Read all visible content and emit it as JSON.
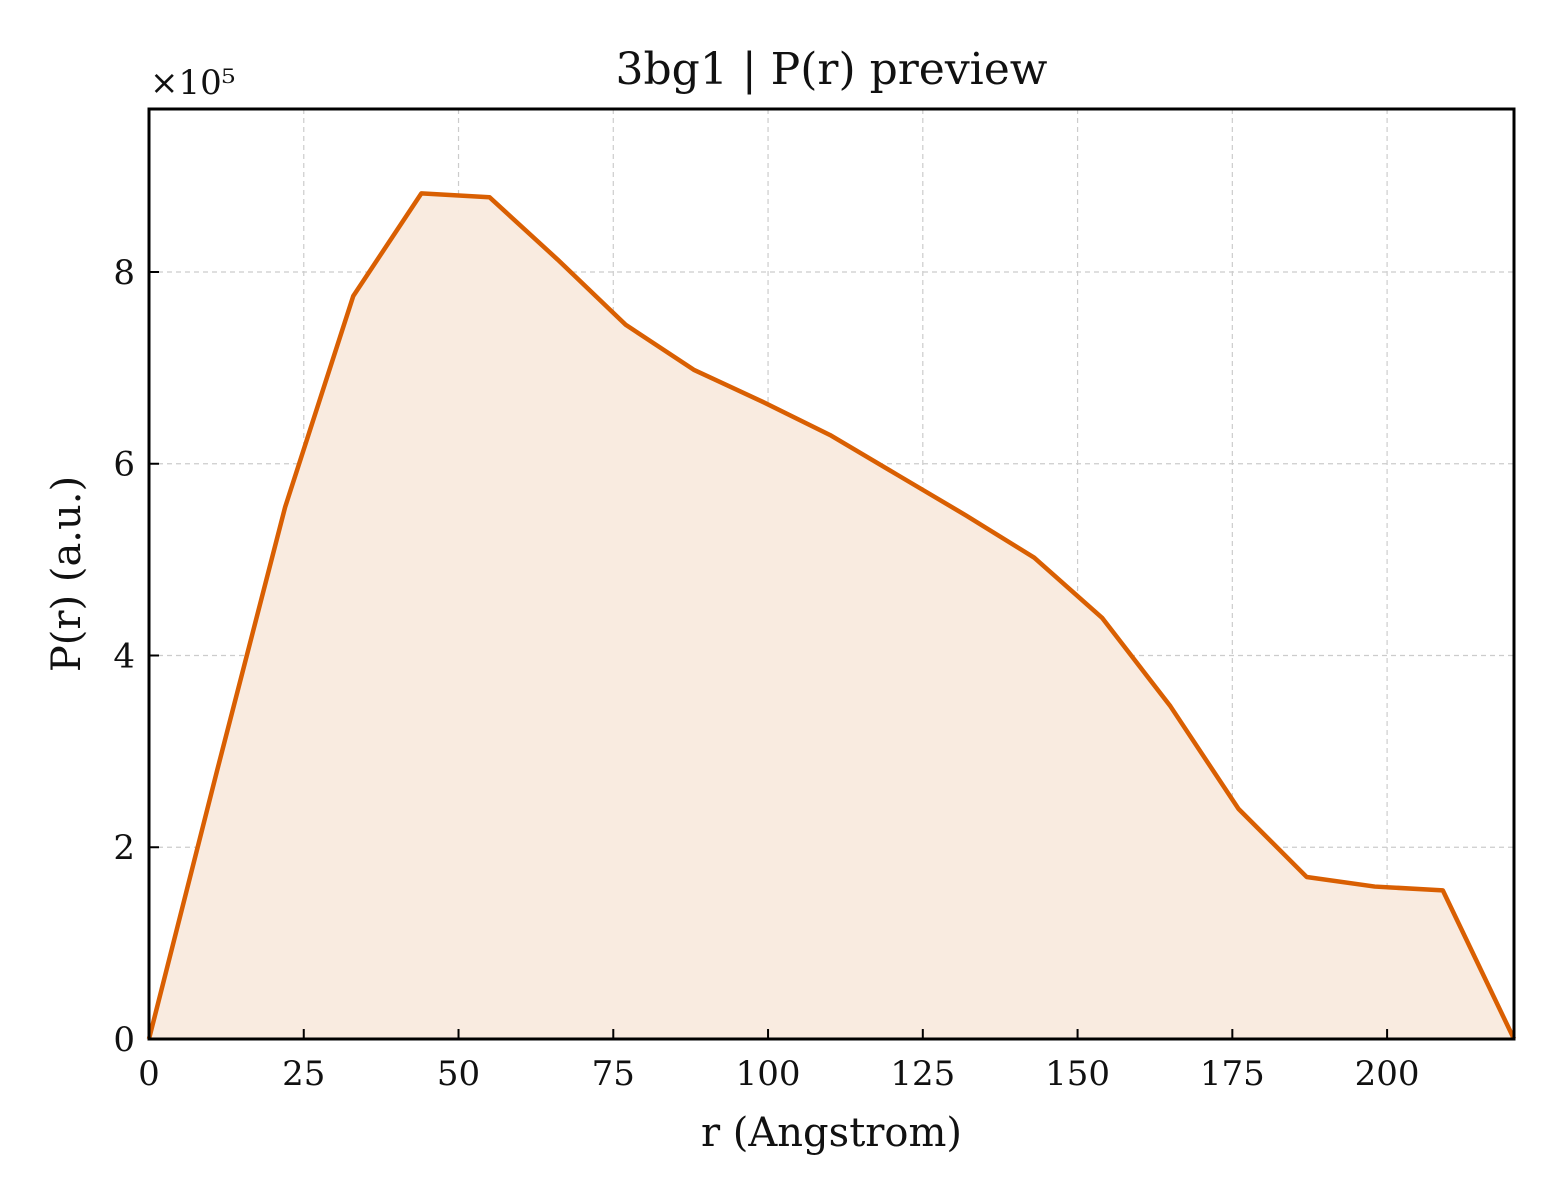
{
  "chart_data": {
    "type": "area",
    "title": "3bg1 | P(r) preview",
    "xlabel": "r (Angstrom)",
    "ylabel": "P(r) (a.u.)",
    "y_offset_label": "×10⁵",
    "y_scale_factor": 100000,
    "xlim": [
      0,
      220.5
    ],
    "ylim": [
      0,
      9.7
    ],
    "x_ticks": [
      0,
      25,
      50,
      75,
      100,
      125,
      150,
      175,
      200
    ],
    "x_tick_labels": [
      "0",
      "25",
      "50",
      "75",
      "100",
      "125",
      "150",
      "175",
      "200"
    ],
    "y_ticks": [
      0,
      2,
      4,
      6,
      8
    ],
    "y_tick_labels": [
      "0",
      "2",
      "4",
      "6",
      "8"
    ],
    "grid": true,
    "line_color": "#d95f02",
    "fill_color": "#f9ebe0",
    "series": [
      {
        "x": [
          0,
          11,
          22,
          33,
          44,
          55,
          66,
          77,
          88,
          99,
          110,
          121,
          132,
          143,
          154,
          165,
          176,
          187,
          198,
          209,
          220.5
        ],
        "y": [
          0,
          2.8,
          5.55,
          7.75,
          8.82,
          8.78,
          8.13,
          7.45,
          6.98,
          6.65,
          6.3,
          5.88,
          5.46,
          5.02,
          4.39,
          3.47,
          2.4,
          1.69,
          1.59,
          1.55,
          0
        ]
      }
    ]
  }
}
